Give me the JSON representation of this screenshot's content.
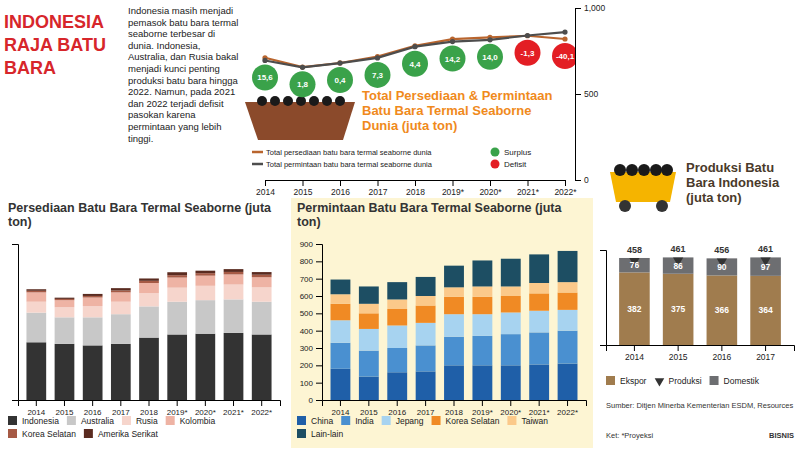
{
  "header": {
    "title": "INDONESIA RAJA BATU BARA",
    "text": "Indonesia masih menjadi pemasok batu bara termal seaborne terbesar di dunia. Indonesia, Australia, dan Rusia bakal menjadi kunci penting produksi batu bara hingga 2022. Namun, pada 2021 dan 2022 terjadi defisit pasokan karena permintaan yang lebih tinggi.",
    "source": "Sumber: Ditjen Minerba Kementerian ESDM, Resources",
    "note": "Ket: *Proyeksi",
    "credit": "BISNIS"
  },
  "chart_data": [
    {
      "type": "line",
      "title": "Total Persediaan & Permintaan Batu Bara Termal Seaborne Dunia (juta ton)",
      "categories": [
        "2014",
        "2015",
        "2016",
        "2017",
        "2018",
        "2019*",
        "2020*",
        "2021*",
        "2022*"
      ],
      "series": [
        {
          "name": "Total persediaan batu bara termal seaborne dunia",
          "color": "#b9652e",
          "marker": "circle",
          "values": [
            710.6,
            656.8,
            680.4,
            717.3,
            779.4,
            819.2,
            829.0,
            838.7,
            819.9
          ]
        },
        {
          "name": "Total permintaan batu bara termal seaborne dunia",
          "color": "#4d4d4d",
          "marker": "circle",
          "values": [
            695,
            655,
            680,
            710,
            775,
            805,
            815,
            840,
            860
          ]
        }
      ],
      "balance": {
        "series": [
          {
            "name": "Surplus",
            "color": "#3aa24a"
          },
          {
            "name": "Defisit",
            "color": "#e31e24"
          }
        ],
        "values": [
          15.6,
          1.8,
          0.4,
          7.3,
          4.4,
          14.2,
          14.0,
          -1.3,
          -40.1
        ],
        "value_labels": [
          "15,6",
          "1,8",
          "0,4",
          "7,3",
          "4,4",
          "14,2",
          "14,0",
          "-1,3",
          "-40,1"
        ]
      },
      "ylim": [
        0,
        1000
      ],
      "yticks": [
        0,
        500,
        {
          "value": 1000,
          "label": "1,000"
        }
      ],
      "legend": "bottom"
    },
    {
      "type": "bar",
      "stacked": true,
      "title": "Persediaan Batu Bara Termal Seaborne (juta ton)",
      "categories": [
        "2014",
        "2015",
        "2016",
        "2017",
        "2018",
        "2019*",
        "2020*",
        "2021*",
        "2022*"
      ],
      "series": [
        {
          "name": "Indonesia",
          "color": "#333333",
          "values": [
            370,
            360,
            350,
            360,
            400,
            420,
            425,
            430,
            420
          ]
        },
        {
          "name": "Australia",
          "color": "#c8c8c8",
          "values": [
            190,
            170,
            180,
            190,
            200,
            210,
            215,
            215,
            210
          ]
        },
        {
          "name": "Rusia",
          "color": "#f6d5cc",
          "values": [
            70,
            65,
            72,
            80,
            85,
            90,
            92,
            95,
            92
          ]
        },
        {
          "name": "Kolombia",
          "color": "#eeb3a4",
          "values": [
            60,
            45,
            55,
            60,
            65,
            65,
            65,
            65,
            65
          ]
        },
        {
          "name": "Korea Selatan",
          "color": "#a65a45",
          "values": [
            10,
            8,
            10,
            12,
            14,
            15,
            16,
            16,
            16
          ]
        },
        {
          "name": "Amerika Serikat",
          "color": "#5a2b20",
          "values": [
            10,
            8,
            13,
            15,
            15,
            19,
            16,
            18,
            17
          ]
        }
      ],
      "ylim": [
        0,
        1000
      ],
      "tick_labels": "x",
      "legend": "bottom"
    },
    {
      "type": "bar",
      "stacked": true,
      "title": "Permintaan Batu Bara Termal Seaborne (juta ton)",
      "categories": [
        "2014",
        "2015",
        "2016",
        "2017",
        "2018",
        "2019*",
        "2020*",
        "2021*",
        "2022*"
      ],
      "series": [
        {
          "name": "China",
          "color": "#1f5fa8",
          "values": [
            180,
            135,
            160,
            165,
            200,
            200,
            200,
            205,
            210
          ]
        },
        {
          "name": "India",
          "color": "#4a90d0",
          "values": [
            150,
            150,
            140,
            150,
            165,
            170,
            180,
            185,
            190
          ]
        },
        {
          "name": "Jepang",
          "color": "#a7d3f0",
          "values": [
            130,
            125,
            130,
            130,
            130,
            125,
            125,
            125,
            120
          ]
        },
        {
          "name": "Korea Selatan",
          "color": "#f08a24",
          "values": [
            95,
            90,
            95,
            100,
            100,
            100,
            95,
            100,
            100
          ]
        },
        {
          "name": "Taiwan",
          "color": "#fbc98a",
          "values": [
            55,
            55,
            55,
            55,
            55,
            60,
            55,
            60,
            60
          ]
        },
        {
          "name": "Lain-lain",
          "color": "#1d4e63",
          "values": [
            85,
            100,
            100,
            110,
            125,
            150,
            160,
            165,
            180
          ]
        }
      ],
      "ylim": [
        0,
        900
      ],
      "yticks": [
        0,
        100,
        200,
        300,
        400,
        500,
        600,
        700,
        800,
        900
      ],
      "legend": "bottom"
    },
    {
      "type": "bar",
      "stacked": true,
      "title": "Produksi Batu Bara Indonesia (juta ton)",
      "categories": [
        "2014",
        "2015",
        "2016",
        "2017"
      ],
      "series": [
        {
          "name": "Ekspor",
          "color": "#a07c4e",
          "values": [
            382,
            375,
            366,
            364
          ]
        },
        {
          "name": "Produksi",
          "type": "scatter",
          "marker": "triangle-down",
          "color": "#333333",
          "values": [
            458,
            461,
            456,
            461
          ]
        },
        {
          "name": "Domestik",
          "color": "#6d6e71",
          "values": [
            76,
            86,
            90,
            97
          ]
        }
      ],
      "ylim": [
        0,
        500
      ],
      "tick_labels": "x",
      "data_labels": true,
      "legend": "bottom"
    }
  ]
}
